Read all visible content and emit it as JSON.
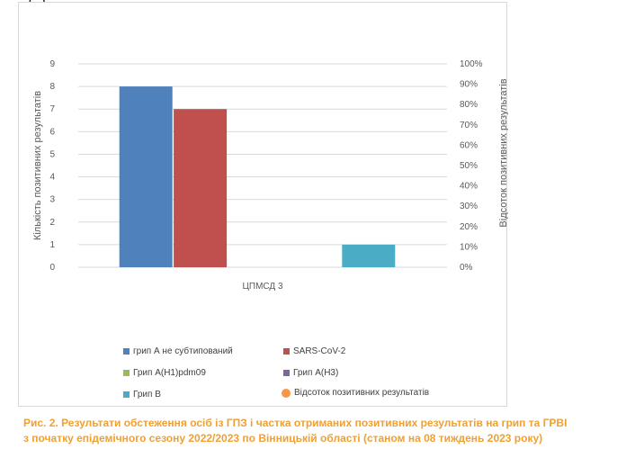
{
  "top_fragment": "(…)",
  "chart_data": {
    "type": "bar",
    "categories": [
      "ЦПМСД 3"
    ],
    "series": [
      {
        "name": "грип А  не субтипований",
        "values": [
          8
        ],
        "color": "#4f81bd"
      },
      {
        "name": "SARS-CoV-2",
        "values": [
          7
        ],
        "color": "#c0504d"
      },
      {
        "name": "Грип A(H1)pdm09",
        "values": [
          0
        ],
        "color": "#9bbb59"
      },
      {
        "name": "Грип A(H3)",
        "values": [
          0
        ],
        "color": "#8064a2"
      },
      {
        "name": "Грип B",
        "values": [
          1
        ],
        "color": "#4bacc6"
      },
      {
        "name": "Відсоток позитивних результатів",
        "values": [
          0
        ],
        "color": "#f79646",
        "marker": "circle",
        "axis": "secondary"
      }
    ],
    "ylabel": "Кількість позитивних результатів",
    "y2label": "Відсоток позитивних результатів",
    "ylim": [
      0,
      9
    ],
    "y2lim": [
      0,
      100
    ],
    "yticks": [
      "0",
      "1",
      "2",
      "3",
      "4",
      "5",
      "6",
      "7",
      "8",
      "9"
    ],
    "y2ticks": [
      "0%",
      "10%",
      "20%",
      "30%",
      "40%",
      "50%",
      "60%",
      "70%",
      "80%",
      "90%",
      "100%"
    ],
    "grid": true,
    "legend_position": "bottom"
  },
  "caption": {
    "line1": "Рис. 2. Результати обстеження осіб із ГПЗ і частка отриманих позитивних результатів на грип та ГРВІ",
    "line2": "з початку епідемічного сезону 2022/2023 по Вінницькій області (станом на 08 тиждень 2023 року)"
  }
}
